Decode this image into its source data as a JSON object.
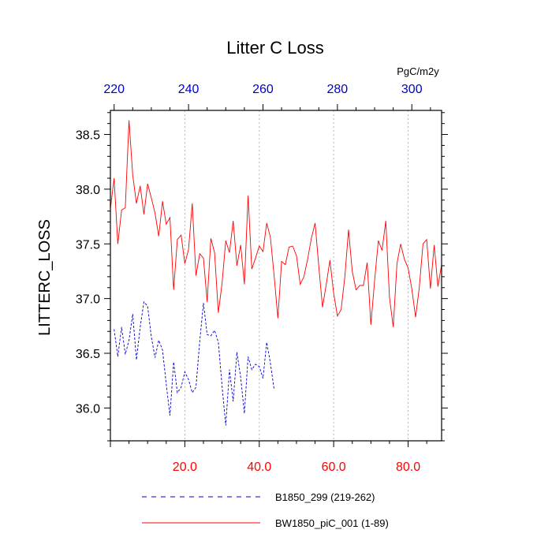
{
  "chart_data": {
    "type": "line",
    "title": "Litter C Loss",
    "ylabel": "LITTERC_LOSS",
    "units": "PgC/m2y",
    "xlim": [
      0,
      89
    ],
    "ylim": [
      35.7,
      38.72
    ],
    "y_ticks": [
      "36.0",
      "36.5",
      "37.0",
      "37.5",
      "38.0",
      "38.5"
    ],
    "x_ticks_bottom": [
      "20.0",
      "40.0",
      "60.0",
      "80.0"
    ],
    "x_ticks_top": [
      "220",
      "240",
      "260",
      "280",
      "300"
    ],
    "grid_x": [
      20,
      40,
      60,
      80
    ],
    "colors": {
      "bottom_axis": "#ff0000",
      "top_axis": "#0000cc"
    },
    "series": [
      {
        "name": "B1850_299 (219-262)",
        "color": "#0000cc",
        "style": "dashed",
        "x": [
          1,
          2,
          3,
          4,
          5,
          6,
          7,
          8,
          9,
          10,
          11,
          12,
          13,
          14,
          15,
          16,
          17,
          18,
          19,
          20,
          21,
          22,
          23,
          24,
          25,
          26,
          27,
          28,
          29,
          30,
          31,
          32,
          33,
          34,
          35,
          36,
          37,
          38,
          39,
          40,
          41,
          42,
          43,
          44
        ],
        "y": [
          36.72,
          36.47,
          36.74,
          36.49,
          36.62,
          36.86,
          36.44,
          36.74,
          36.97,
          36.93,
          36.65,
          36.46,
          36.62,
          36.53,
          36.22,
          35.93,
          36.42,
          36.14,
          36.19,
          36.33,
          36.26,
          36.14,
          36.19,
          36.61,
          36.96,
          36.67,
          36.66,
          36.71,
          36.6,
          36.2,
          35.84,
          36.35,
          36.06,
          36.51,
          36.28,
          35.95,
          36.47,
          36.35,
          36.4,
          36.38,
          36.27,
          36.6,
          36.41,
          36.17
        ]
      },
      {
        "name": "BW1850_piC_001 (1-89)",
        "color": "#ff0000",
        "style": "solid",
        "x": [
          0,
          1,
          2,
          3,
          4,
          5,
          6,
          7,
          8,
          9,
          10,
          11,
          12,
          13,
          14,
          15,
          16,
          17,
          18,
          19,
          20,
          21,
          22,
          23,
          24,
          25,
          26,
          27,
          28,
          29,
          30,
          31,
          32,
          33,
          34,
          35,
          36,
          37,
          38,
          39,
          40,
          41,
          42,
          43,
          44,
          45,
          46,
          47,
          48,
          49,
          50,
          51,
          52,
          53,
          54,
          55,
          56,
          57,
          58,
          59,
          60,
          61,
          62,
          63,
          64,
          65,
          66,
          67,
          68,
          69,
          70,
          71,
          72,
          73,
          74,
          75,
          76,
          77,
          78,
          79,
          80,
          81,
          82,
          83,
          84,
          85,
          86,
          87,
          88,
          89
        ],
        "y": [
          37.82,
          38.1,
          37.5,
          37.81,
          37.83,
          38.63,
          38.13,
          37.87,
          38.03,
          37.77,
          38.05,
          37.92,
          37.78,
          37.57,
          37.89,
          37.68,
          37.74,
          37.08,
          37.54,
          37.58,
          37.32,
          37.45,
          37.87,
          37.21,
          37.41,
          37.37,
          36.97,
          37.55,
          37.42,
          36.87,
          37.14,
          37.53,
          37.42,
          37.71,
          37.3,
          37.49,
          37.13,
          37.94,
          37.27,
          37.37,
          37.48,
          37.43,
          37.69,
          37.56,
          37.21,
          36.82,
          37.34,
          37.31,
          37.47,
          37.48,
          37.39,
          37.13,
          37.2,
          37.36,
          37.55,
          37.69,
          37.29,
          36.92,
          37.13,
          37.35,
          37.05,
          36.84,
          36.9,
          37.2,
          37.63,
          37.25,
          37.08,
          37.12,
          37.12,
          37.33,
          36.76,
          37.17,
          37.53,
          37.44,
          37.71,
          37.01,
          36.74,
          37.32,
          37.5,
          37.36,
          37.28,
          37.09,
          36.83,
          37.1,
          37.5,
          37.54,
          37.09,
          37.49,
          37.11,
          37.31
        ]
      }
    ],
    "legend": [
      "B1850_299 (219-262)",
      "BW1850_piC_001 (1-89)"
    ]
  }
}
